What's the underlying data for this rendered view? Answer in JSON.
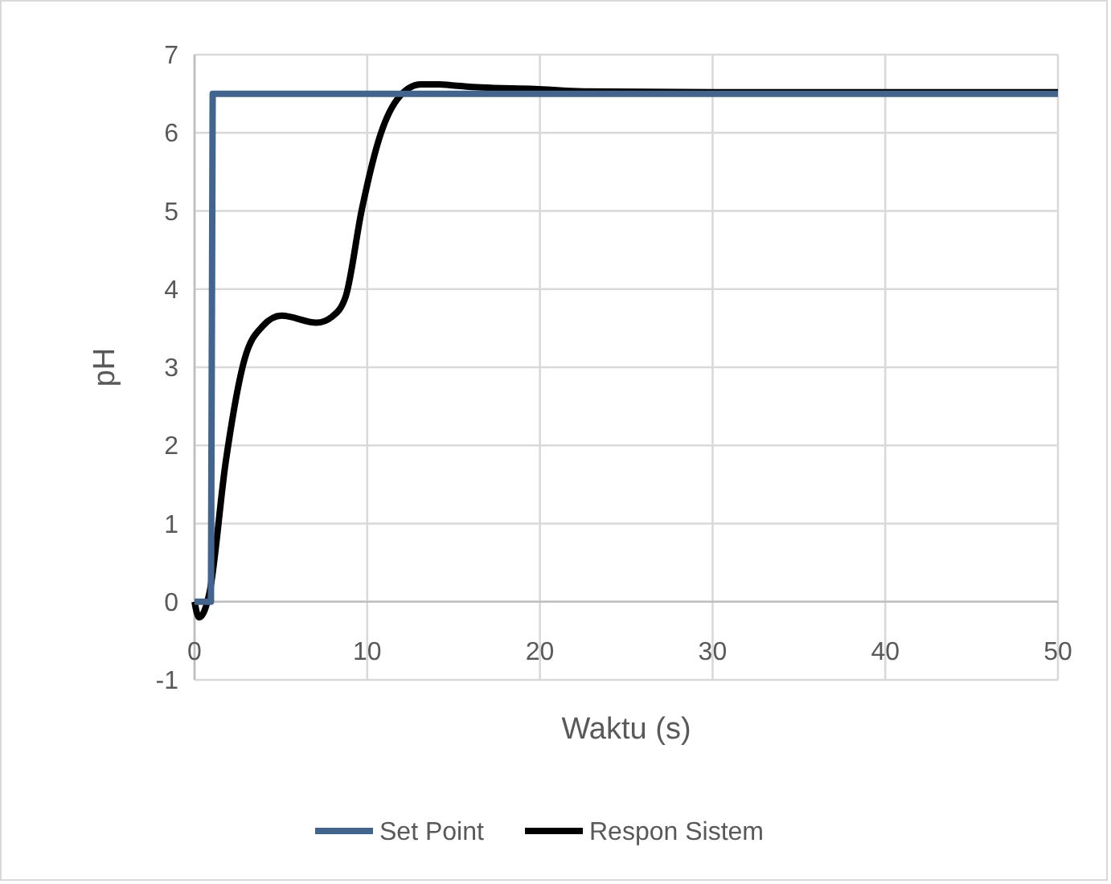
{
  "chart_data": {
    "type": "line",
    "xlabel": "Waktu (s)",
    "ylabel": "pH",
    "xlim": [
      0,
      50
    ],
    "ylim": [
      -1,
      7
    ],
    "xticks": [
      0,
      10,
      20,
      30,
      40,
      50
    ],
    "yticks": [
      -1,
      0,
      1,
      2,
      3,
      4,
      5,
      6,
      7
    ],
    "grid": true,
    "legend": "bottom",
    "marker": "none",
    "line_style": "solid",
    "series": [
      {
        "name": "Set Point",
        "color": "#41658f",
        "x": [
          0,
          0.95,
          1.05,
          50
        ],
        "values": [
          0,
          0,
          6.5,
          6.5
        ]
      },
      {
        "name": "Respon Sistem",
        "color": "#000000",
        "x": [
          0,
          0.25,
          0.5,
          0.87,
          1.8,
          2.88,
          3.96,
          5.04,
          7.06,
          7.98,
          8.76,
          9.68,
          10.77,
          11.85,
          13.1,
          14.2,
          14.8,
          16.6,
          19.7,
          22.5,
          30,
          40,
          50
        ],
        "values": [
          0,
          -0.2,
          -0.15,
          0.12,
          1.78,
          3.09,
          3.53,
          3.66,
          3.57,
          3.65,
          3.91,
          5.01,
          5.98,
          6.46,
          6.62,
          6.62,
          6.61,
          6.58,
          6.56,
          6.53,
          6.52,
          6.52,
          6.52
        ]
      }
    ]
  }
}
